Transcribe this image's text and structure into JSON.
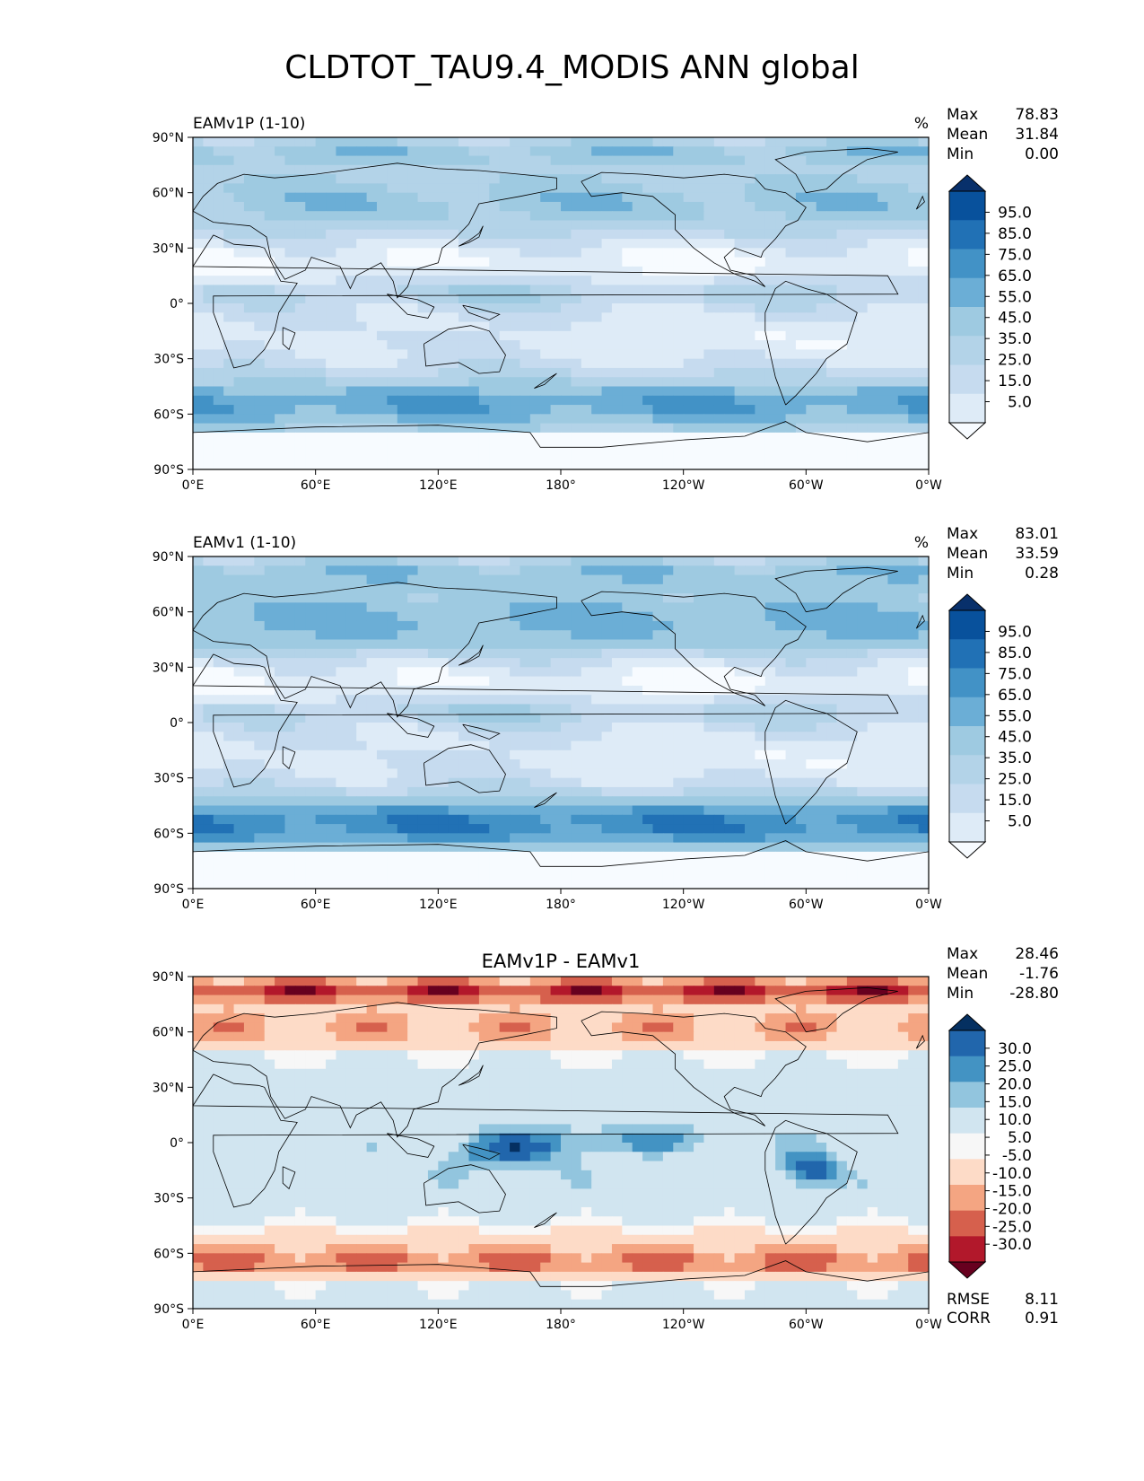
{
  "figure": {
    "title": "CLDTOT_TAU9.4_MODIS ANN global"
  },
  "axes": {
    "x_ticks": [
      "0°E",
      "60°E",
      "120°E",
      "180°",
      "120°W",
      "60°W",
      "0°W"
    ],
    "y_ticks": [
      "90°N",
      "60°N",
      "30°N",
      "0°",
      "30°S",
      "60°S",
      "90°S"
    ]
  },
  "stat_labels": {
    "max": "Max",
    "mean": "Mean",
    "min": "Min",
    "rmse": "RMSE",
    "corr": "CORR"
  },
  "colors": {
    "blues": [
      "#f7fbff",
      "#deebf7",
      "#c6dbef",
      "#b3d3e8",
      "#9ecae1",
      "#6baed6",
      "#4292c6",
      "#2171b5",
      "#08519c",
      "#08306b"
    ],
    "diverging": [
      "#67001f",
      "#b2182b",
      "#d6604d",
      "#f4a582",
      "#fddbc7",
      "#f7f7f7",
      "#d1e5f0",
      "#92c5de",
      "#4393c3",
      "#2166ac",
      "#053061"
    ],
    "coast": "#000000"
  },
  "chart_data": [
    {
      "type": "heatmap",
      "title": "EAMv1P (1-10)",
      "units": "%",
      "stats": {
        "max": "78.83",
        "mean": "31.84",
        "min": "0.00"
      },
      "colorbar_ticks": [
        "95.0",
        "85.0",
        "75.0",
        "65.0",
        "55.0",
        "45.0",
        "35.0",
        "25.0",
        "15.0",
        "5.0"
      ],
      "xlim": [
        0,
        360
      ],
      "ylim": [
        -90,
        90
      ],
      "grid": false
    },
    {
      "type": "heatmap",
      "title": "EAMv1 (1-10)",
      "units": "%",
      "stats": {
        "max": "83.01",
        "mean": "33.59",
        "min": "0.28"
      },
      "colorbar_ticks": [
        "95.0",
        "85.0",
        "75.0",
        "65.0",
        "55.0",
        "45.0",
        "35.0",
        "25.0",
        "15.0",
        "5.0"
      ],
      "xlim": [
        0,
        360
      ],
      "ylim": [
        -90,
        90
      ],
      "grid": false
    },
    {
      "type": "heatmap",
      "title": "EAMv1P - EAMv1",
      "units": "",
      "stats": {
        "max": "28.46",
        "mean": "-1.76",
        "min": "-28.80"
      },
      "rmse": "8.11",
      "corr": "0.91",
      "colorbar_ticks": [
        "30.0",
        "25.0",
        "20.0",
        "15.0",
        "10.0",
        "5.0",
        "-5.0",
        "-10.0",
        "-15.0",
        "-20.0",
        "-25.0",
        "-30.0"
      ],
      "xlim": [
        0,
        360
      ],
      "ylim": [
        -90,
        90
      ],
      "grid": false
    }
  ]
}
